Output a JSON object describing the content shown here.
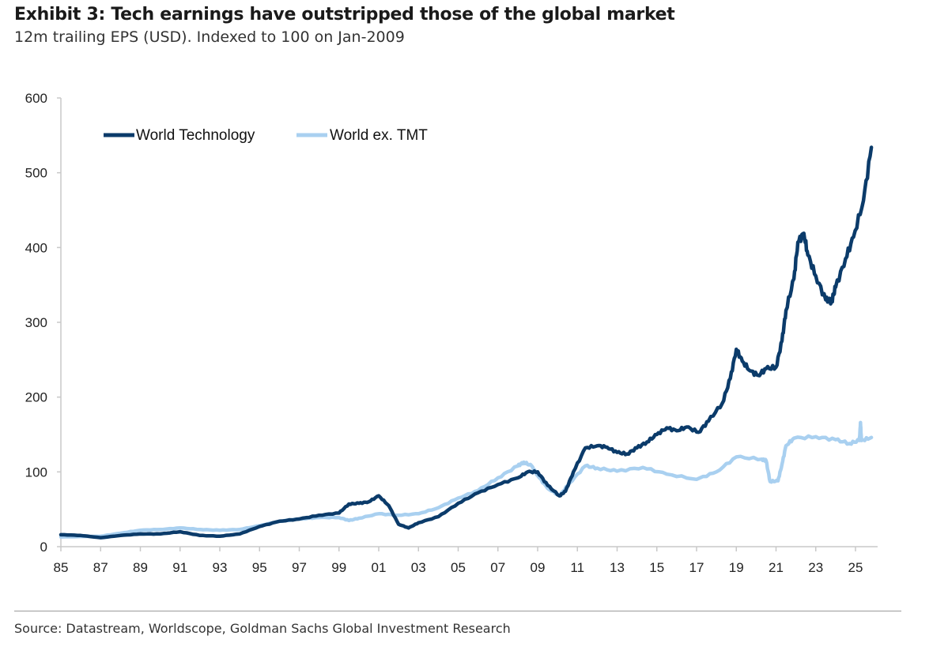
{
  "title": "Exhibit 3: Tech earnings have outstripped those of the global market",
  "subtitle": "12m trailing EPS (USD). Indexed to 100 on Jan-2009",
  "source": "Source: Datastream, Worldscope, Goldman Sachs Global Investment Research",
  "chart_data": {
    "type": "line",
    "title": "Exhibit 3: Tech earnings have outstripped those of the global market",
    "subtitle": "12m trailing EPS (USD). Indexed to 100 on Jan-2009",
    "xlabel": "",
    "ylabel": "",
    "xlim": [
      1985,
      2026.1
    ],
    "ylim": [
      0,
      600
    ],
    "yticks": [
      0,
      100,
      200,
      300,
      400,
      500,
      600
    ],
    "xtick_labels": [
      "85",
      "87",
      "89",
      "91",
      "93",
      "95",
      "97",
      "99",
      "01",
      "03",
      "05",
      "07",
      "09",
      "11",
      "13",
      "15",
      "17",
      "19",
      "21",
      "23",
      "25"
    ],
    "xtick_years": [
      1985,
      1987,
      1989,
      1991,
      1993,
      1995,
      1997,
      1999,
      2001,
      2003,
      2005,
      2007,
      2009,
      2011,
      2013,
      2015,
      2017,
      2019,
      2021,
      2023,
      2025
    ],
    "grid": false,
    "legend": "top-left",
    "series": [
      {
        "name": "World Technology",
        "color": "#0b3b6a",
        "x": [
          1985,
          1986,
          1987,
          1988,
          1989,
          1990,
          1991,
          1992,
          1993,
          1994,
          1995,
          1996,
          1997,
          1998,
          1999,
          1999.5,
          2000,
          2000.5,
          2001,
          2001.5,
          2002,
          2002.5,
          2003,
          2004,
          2005,
          2006,
          2007,
          2008,
          2008.5,
          2009,
          2009.5,
          2010.1,
          2010.4,
          2010.8,
          2011.4,
          2012,
          2012.5,
          2013,
          2013.5,
          2014,
          2014.5,
          2015,
          2015.5,
          2016,
          2016.5,
          2017.1,
          2017.6,
          2018.3,
          2018.7,
          2019,
          2019.3,
          2019.7,
          2020.1,
          2020.5,
          2021,
          2021.3,
          2021.5,
          2021.9,
          2022.1,
          2022.4,
          2022.6,
          2023,
          2023.5,
          2023.8,
          2024,
          2024.5,
          2024.9,
          2025.4,
          2025.8
        ],
        "y": [
          16,
          15,
          12,
          15,
          17,
          17,
          20,
          15,
          14,
          17,
          27,
          34,
          37,
          42,
          45,
          57,
          58,
          60,
          68,
          55,
          30,
          25,
          32,
          40,
          58,
          72,
          83,
          92,
          100,
          100,
          82,
          68,
          74,
          100,
          132,
          135,
          133,
          126,
          124,
          132,
          140,
          150,
          159,
          155,
          160,
          153,
          168,
          192,
          225,
          264,
          248,
          235,
          229,
          238,
          240,
          275,
          316,
          358,
          407,
          419,
          390,
          362,
          330,
          328,
          347,
          385,
          414,
          463,
          534
        ]
      },
      {
        "name": "World ex. TMT",
        "color": "#a9d0f0",
        "x": [
          1985,
          1987,
          1988,
          1989,
          1990,
          1991,
          1992,
          1993,
          1994,
          1995,
          1996,
          1997,
          1998,
          1999,
          1999.5,
          2000,
          2001,
          2002,
          2003,
          2004,
          2005,
          2006,
          2007,
          2008,
          2008.3,
          2008.7,
          2009,
          2009.5,
          2010.1,
          2010.6,
          2011.4,
          2012,
          2013,
          2014.3,
          2015.5,
          2017,
          2018,
          2019,
          2020.3,
          2020.5,
          2020.7,
          2021.1,
          2021.3,
          2021.5,
          2021.9,
          2023,
          2024,
          2024.7,
          2025.2,
          2025.25,
          2025.3,
          2025.8
        ],
        "y": [
          13,
          14,
          18,
          22,
          23,
          25,
          23,
          22,
          23,
          28,
          34,
          37,
          39,
          39,
          35,
          38,
          44,
          42,
          44,
          52,
          65,
          75,
          92,
          108,
          113,
          108,
          95,
          78,
          68,
          85,
          108,
          105,
          101,
          106,
          97,
          90,
          100,
          120,
          117,
          115,
          87,
          88,
          110,
          135,
          145,
          147,
          143,
          138,
          142,
          166,
          142,
          146
        ]
      }
    ]
  }
}
